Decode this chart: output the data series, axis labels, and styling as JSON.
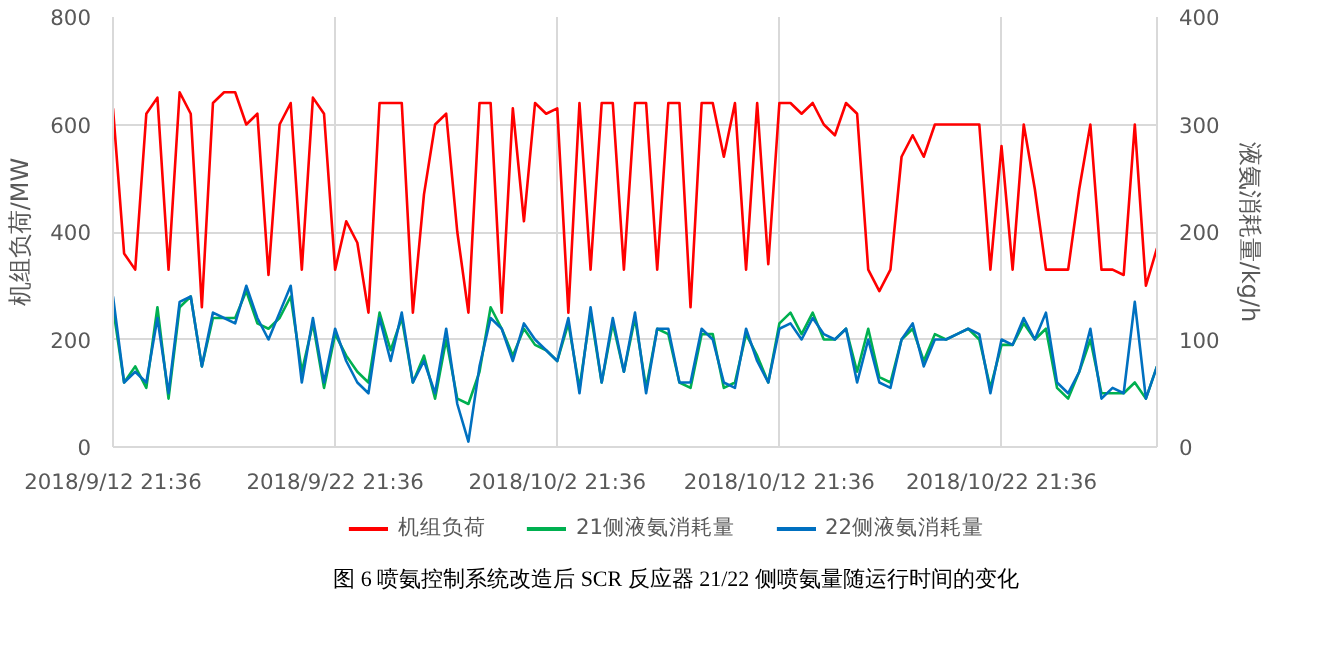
{
  "chart_data": {
    "type": "line",
    "xlabel": null,
    "ylabel": "机组负荷/MW",
    "y2label": "液氨消耗量/kg/h",
    "x": [
      "2018-09-12T21:36",
      "2018-09-13T09:36",
      "2018-09-13T21:36",
      "2018-09-14T09:36",
      "2018-09-14T21:36",
      "2018-09-15T09:36",
      "2018-09-15T21:36",
      "2018-09-16T09:36",
      "2018-09-16T21:36",
      "2018-09-17T09:36",
      "2018-09-17T21:36",
      "2018-09-18T09:36",
      "2018-09-18T21:36",
      "2018-09-19T09:36",
      "2018-09-19T21:36",
      "2018-09-20T09:36",
      "2018-09-20T21:36",
      "2018-09-21T09:36",
      "2018-09-21T21:36",
      "2018-09-22T09:36",
      "2018-09-22T21:36",
      "2018-09-23T09:36",
      "2018-09-23T21:36",
      "2018-09-24T09:36",
      "2018-09-24T21:36",
      "2018-09-25T09:36",
      "2018-09-25T21:36",
      "2018-09-26T09:36",
      "2018-09-26T21:36",
      "2018-09-27T09:36",
      "2018-09-27T21:36",
      "2018-09-28T09:36",
      "2018-09-28T21:36",
      "2018-09-29T09:36",
      "2018-09-29T21:36",
      "2018-09-30T09:36",
      "2018-09-30T21:36",
      "2018-10-01T09:36",
      "2018-10-01T21:36",
      "2018-10-02T09:36",
      "2018-10-02T21:36",
      "2018-10-03T09:36",
      "2018-10-03T21:36",
      "2018-10-04T09:36",
      "2018-10-04T21:36",
      "2018-10-05T09:36",
      "2018-10-05T21:36",
      "2018-10-06T09:36",
      "2018-10-06T21:36",
      "2018-10-07T09:36",
      "2018-10-07T21:36",
      "2018-10-08T09:36",
      "2018-10-08T21:36",
      "2018-10-09T09:36",
      "2018-10-09T21:36",
      "2018-10-10T09:36",
      "2018-10-10T21:36",
      "2018-10-11T09:36",
      "2018-10-11T21:36",
      "2018-10-12T09:36",
      "2018-10-12T21:36",
      "2018-10-13T09:36",
      "2018-10-13T21:36",
      "2018-10-14T09:36",
      "2018-10-14T21:36",
      "2018-10-15T09:36",
      "2018-10-15T21:36",
      "2018-10-16T09:36",
      "2018-10-16T21:36",
      "2018-10-17T09:36",
      "2018-10-17T21:36",
      "2018-10-18T09:36",
      "2018-10-18T21:36",
      "2018-10-19T09:36",
      "2018-10-19T21:36",
      "2018-10-20T09:36",
      "2018-10-20T21:36",
      "2018-10-21T09:36",
      "2018-10-21T21:36",
      "2018-10-22T09:36",
      "2018-10-22T21:36",
      "2018-10-23T09:36",
      "2018-10-23T21:36",
      "2018-10-24T09:36",
      "2018-10-24T21:36",
      "2018-10-25T09:36",
      "2018-10-25T21:36",
      "2018-10-26T09:36",
      "2018-10-26T21:36",
      "2018-10-27T09:36",
      "2018-10-27T21:36",
      "2018-10-28T09:36",
      "2018-10-28T21:36",
      "2018-10-29T09:36",
      "2018-10-29T21:36"
    ],
    "series": [
      {
        "name": "机组负荷",
        "color": "#ff0000",
        "values": [
          630,
          360,
          330,
          620,
          650,
          330,
          660,
          620,
          260,
          640,
          660,
          660,
          600,
          620,
          320,
          600,
          640,
          330,
          650,
          620,
          330,
          420,
          380,
          250,
          640,
          640,
          640,
          250,
          470,
          600,
          620,
          400,
          250,
          640,
          640,
          250,
          630,
          420,
          640,
          620,
          630,
          250,
          640,
          330,
          640,
          640,
          330,
          640,
          640,
          330,
          640,
          640,
          260,
          640,
          640,
          540,
          640,
          330,
          640,
          340,
          640,
          640,
          620,
          640,
          600,
          580,
          640,
          620,
          330,
          290,
          330,
          540,
          580,
          540,
          600,
          600,
          600,
          600,
          600,
          330,
          560,
          330,
          600,
          480,
          330,
          330,
          330,
          480,
          600,
          330,
          330,
          320,
          600,
          300,
          370
        ]
      },
      {
        "name": "21侧液氨消耗量",
        "color": "#00b050",
        "axis": "y2",
        "values": [
          130,
          60,
          75,
          55,
          130,
          45,
          130,
          140,
          75,
          120,
          120,
          120,
          145,
          115,
          110,
          120,
          140,
          70,
          115,
          55,
          105,
          85,
          70,
          60,
          125,
          90,
          120,
          60,
          85,
          45,
          100,
          45,
          40,
          70,
          130,
          110,
          85,
          110,
          95,
          90,
          80,
          115,
          55,
          125,
          60,
          115,
          70,
          120,
          55,
          110,
          105,
          60,
          55,
          105,
          105,
          55,
          60,
          105,
          85,
          60,
          115,
          125,
          105,
          125,
          100,
          100,
          110,
          70,
          110,
          65,
          60,
          100,
          110,
          80,
          105,
          100,
          105,
          110,
          100,
          55,
          95,
          95,
          115,
          100,
          110,
          55,
          45,
          70,
          100,
          50,
          50,
          50,
          60,
          45,
          75
        ]
      },
      {
        "name": "22侧液氨消耗量",
        "color": "#0070c0",
        "axis": "y2",
        "values": [
          140,
          60,
          70,
          60,
          120,
          50,
          135,
          140,
          75,
          125,
          120,
          115,
          150,
          120,
          100,
          125,
          150,
          60,
          120,
          60,
          110,
          80,
          60,
          50,
          120,
          80,
          125,
          60,
          80,
          50,
          110,
          40,
          5,
          75,
          120,
          110,
          80,
          115,
          100,
          90,
          80,
          120,
          50,
          130,
          60,
          120,
          70,
          125,
          50,
          110,
          110,
          60,
          60,
          110,
          100,
          60,
          55,
          110,
          80,
          60,
          110,
          115,
          100,
          120,
          105,
          100,
          110,
          60,
          100,
          60,
          55,
          100,
          115,
          75,
          100,
          100,
          105,
          110,
          105,
          50,
          100,
          95,
          120,
          100,
          125,
          60,
          50,
          70,
          110,
          45,
          55,
          50,
          135,
          45,
          75
        ]
      }
    ],
    "xlim": [
      "2018-09-12T21:36",
      "2018-10-29T21:36"
    ],
    "xticks": [
      {
        "value": "2018-09-12T21:36",
        "label": "2018/9/12 21:36"
      },
      {
        "value": "2018-09-22T21:36",
        "label": "2018/9/22 21:36"
      },
      {
        "value": "2018-10-02T21:36",
        "label": "2018/10/2 21:36"
      },
      {
        "value": "2018-10-12T21:36",
        "label": "2018/10/12 21:36"
      },
      {
        "value": "2018-10-22T21:36",
        "label": "2018/10/22 21:36"
      }
    ],
    "ylim": [
      0,
      800
    ],
    "yticks": [
      0,
      200,
      400,
      600,
      800
    ],
    "y2lim": [
      0,
      400
    ],
    "y2ticks": [
      0,
      100,
      200,
      300,
      400
    ],
    "grid": true,
    "legend": "bottom",
    "marker": "none",
    "line_style": "solid",
    "annotations": [
      "图 6 喷氨控制系统改造后 SCR 反应器 21/22 侧喷氨量随运行时间的变化"
    ]
  }
}
